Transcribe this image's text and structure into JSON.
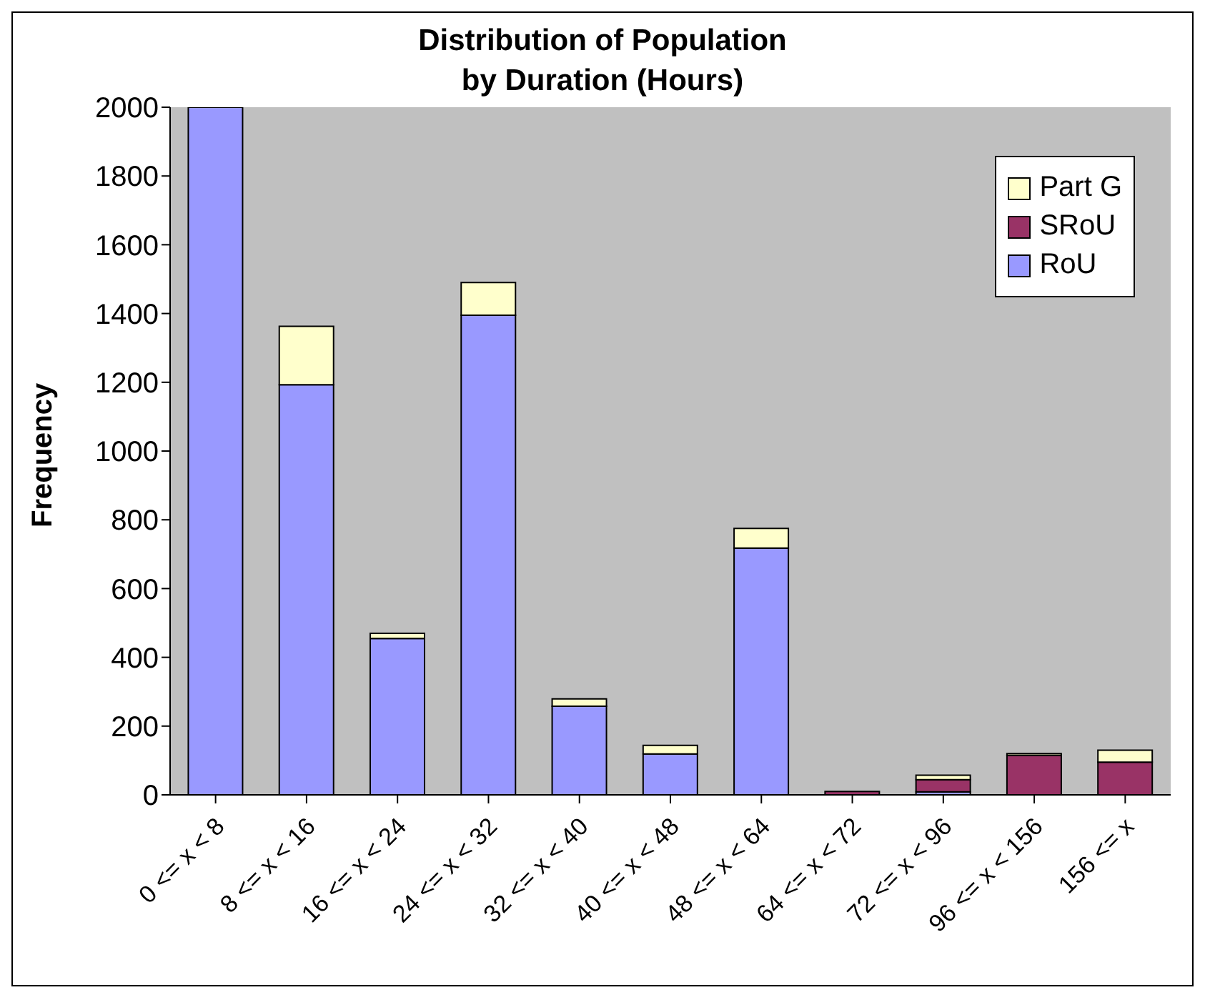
{
  "chart_data": {
    "type": "bar",
    "title": "Distribution of Population\nby Duration (Hours)",
    "ylabel": "Frequency",
    "categories": [
      "0 <= x < 8",
      "8 <= x < 16",
      "16 <= x < 24",
      "24 <= x < 32",
      "32 <= x < 40",
      "40 <= x < 48",
      "48 <= x < 64",
      "64 <= x < 72",
      "72 <= x < 96",
      "96 <= x < 156",
      "156 <= x"
    ],
    "stacked": true,
    "series": [
      {
        "name": "RoU",
        "color": "#9999ff",
        "values": [
          2000,
          1193,
          455,
          1395,
          258,
          119,
          718,
          0,
          9,
          0,
          0
        ]
      },
      {
        "name": "SRoU",
        "color": "#993366",
        "values": [
          0,
          0,
          0,
          0,
          0,
          0,
          0,
          10,
          35,
          115,
          95
        ]
      },
      {
        "name": "Part G",
        "color": "#ffffcc",
        "values": [
          0,
          170,
          15,
          95,
          21,
          25,
          57,
          0,
          13,
          5,
          35
        ]
      }
    ],
    "ylim": [
      0,
      2000
    ],
    "yticks": [
      0,
      200,
      400,
      600,
      800,
      1000,
      1200,
      1400,
      1600,
      1800,
      2000
    ],
    "grid": false,
    "legend": "top right"
  }
}
